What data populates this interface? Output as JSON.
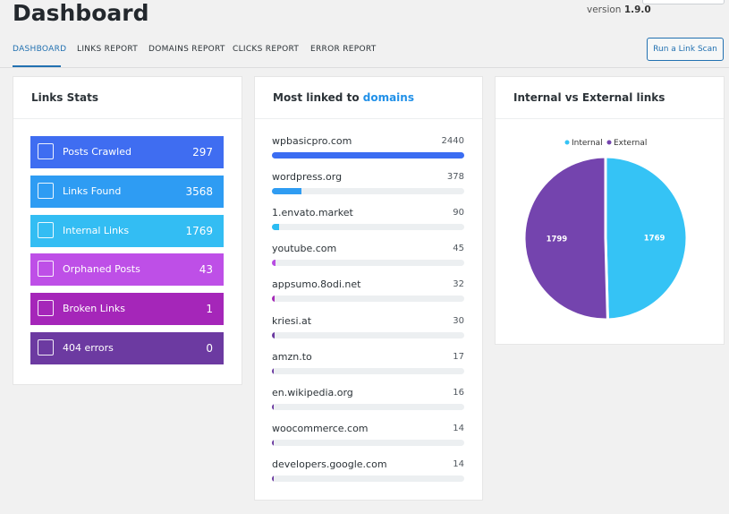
{
  "header": {
    "title": "Dashboard",
    "version_label": "version",
    "version": "1.9.0",
    "button": "Run a Link Scan"
  },
  "tabs": [
    "DASHBOARD",
    "LINKS REPORT",
    "DOMAINS REPORT",
    "CLICKS REPORT",
    "ERROR REPORT"
  ],
  "links_stats": {
    "title": "Links Stats",
    "rows": [
      {
        "label": "Posts Crawled",
        "value": 297,
        "color": "#3f6df1"
      },
      {
        "label": "Links Found",
        "value": 3568,
        "color": "#2e9cf3"
      },
      {
        "label": "Internal Links",
        "value": 1769,
        "color": "#33bdf3"
      },
      {
        "label": "Orphaned Posts",
        "value": 43,
        "color": "#be4fe7"
      },
      {
        "label": "Broken Links",
        "value": 1,
        "color": "#a526b9"
      },
      {
        "label": "404 errors",
        "value": 0,
        "color": "#6c3aa1"
      }
    ]
  },
  "domains": {
    "title": "Most linked to",
    "title_link": "domains",
    "rows": [
      {
        "name": "wpbasicpro.com",
        "count": 2440,
        "color": "#3b6df2"
      },
      {
        "name": "wordpress.org",
        "count": 378,
        "color": "#2f9cf2"
      },
      {
        "name": "1.envato.market",
        "count": 90,
        "color": "#2bbcf2"
      },
      {
        "name": "youtube.com",
        "count": 45,
        "color": "#b84de2"
      },
      {
        "name": "appsumo.8odi.net",
        "count": 32,
        "color": "#a52ab8"
      },
      {
        "name": "kriesi.at",
        "count": 30,
        "color": "#6b3aa0"
      },
      {
        "name": "amzn.to",
        "count": 17,
        "color": "#6b3aa0"
      },
      {
        "name": "en.wikipedia.org",
        "count": 16,
        "color": "#6b3aa0"
      },
      {
        "name": "woocommerce.com",
        "count": 14,
        "color": "#6b3aa0"
      },
      {
        "name": "developers.google.com",
        "count": 14,
        "color": "#6b3aa0"
      }
    ]
  },
  "chart_data": {
    "type": "pie",
    "title": "Internal vs External links",
    "categories": [
      "Internal",
      "External"
    ],
    "values": [
      1769,
      1799
    ],
    "colors": [
      "#35c3f5",
      "#7444ae"
    ]
  }
}
